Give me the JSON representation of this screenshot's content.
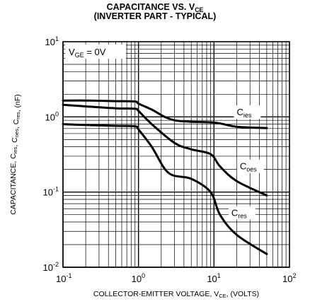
{
  "chart_data": {
    "type": "line",
    "title": "CAPACITANCE VS. V",
    "title_sub": "CE",
    "subtitle": "(INVERTER PART - TYPICAL)",
    "xlabel": "COLLECTOR-EMITTER VOLTAGE, V",
    "xlabel_sub": "CE",
    "xlabel_tail": ", (VOLTS)",
    "ylabel": "CAPACITANCE, C",
    "ylabel_parts": [
      {
        "text": "CAPACITANCE, C",
        "sub": "ies"
      },
      {
        "text": ", C",
        "sub": "oes"
      },
      {
        "text": ", C",
        "sub": "res"
      },
      {
        "text": ", (nF)",
        "sub": ""
      }
    ],
    "x_scale": "log",
    "y_scale": "log",
    "xlim": [
      0.1,
      100
    ],
    "ylim": [
      0.01,
      10
    ],
    "grid": true,
    "x_ticks": [
      {
        "base": "10",
        "exp": "-1"
      },
      {
        "base": "10",
        "exp": "0"
      },
      {
        "base": "10",
        "exp": "1"
      },
      {
        "base": "10",
        "exp": "2"
      }
    ],
    "y_ticks": [
      {
        "base": "10",
        "exp": "-2"
      },
      {
        "base": "10",
        "exp": "-1"
      },
      {
        "base": "10",
        "exp": "0"
      },
      {
        "base": "10",
        "exp": "1"
      }
    ],
    "annotation": {
      "text": "V",
      "sub": "GE",
      "tail": " = 0V"
    },
    "series": [
      {
        "name": "C",
        "name_sub": "ies",
        "x": [
          0.1,
          0.2,
          0.5,
          0.9,
          1.0,
          1.5,
          3.0,
          10,
          20,
          50
        ],
        "y": [
          1.65,
          1.65,
          1.62,
          1.6,
          1.5,
          1.25,
          0.9,
          0.84,
          0.74,
          0.71
        ]
      },
      {
        "name": "C",
        "name_sub": "oes",
        "x": [
          0.1,
          0.2,
          0.5,
          0.9,
          1.0,
          1.5,
          3.0,
          5.0,
          9.0,
          12,
          20,
          50
        ],
        "y": [
          1.45,
          1.38,
          1.3,
          1.28,
          1.2,
          0.8,
          0.45,
          0.37,
          0.32,
          0.22,
          0.14,
          0.09
        ]
      },
      {
        "name": "C",
        "name_sub": "res",
        "x": [
          0.1,
          0.2,
          0.5,
          0.9,
          1.0,
          1.5,
          2.5,
          5.0,
          9.0,
          12,
          20,
          50
        ],
        "y": [
          0.8,
          0.78,
          0.76,
          0.75,
          0.68,
          0.4,
          0.18,
          0.15,
          0.1,
          0.05,
          0.027,
          0.015
        ]
      }
    ]
  }
}
